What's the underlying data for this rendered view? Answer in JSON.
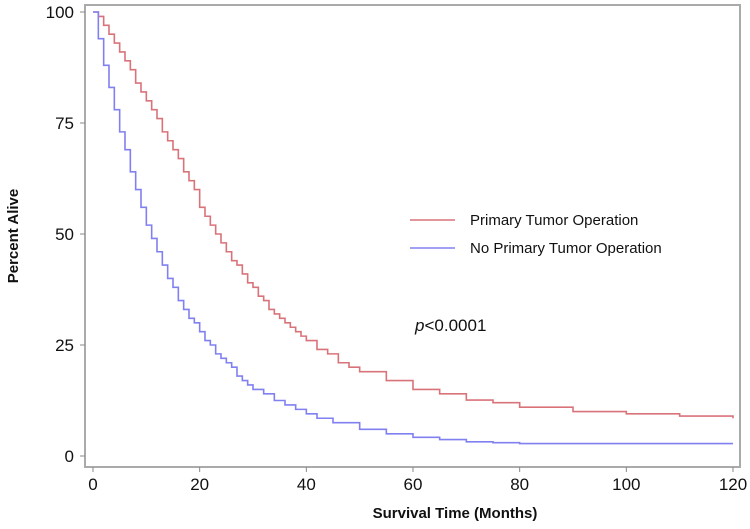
{
  "chart_data": {
    "type": "line",
    "title": "",
    "xlabel": "Survival Time (Months)",
    "ylabel": "Percent Alive",
    "xlim": [
      0,
      120
    ],
    "ylim": [
      0,
      100
    ],
    "xticks": [
      0,
      20,
      40,
      60,
      80,
      100,
      120
    ],
    "yticks": [
      0,
      25,
      50,
      75,
      100
    ],
    "grid": false,
    "legend_position": "center-right",
    "annotation": {
      "italic": "p",
      "text": "<0.0001"
    },
    "series": [
      {
        "name": "Primary Tumor Operation",
        "color": "#d9737a",
        "step": true,
        "x": [
          0,
          1,
          2,
          3,
          4,
          5,
          6,
          7,
          8,
          9,
          10,
          11,
          12,
          13,
          14,
          15,
          16,
          17,
          18,
          19,
          20,
          21,
          22,
          23,
          24,
          25,
          26,
          27,
          28,
          29,
          30,
          31,
          32,
          33,
          34,
          35,
          36,
          37,
          38,
          39,
          40,
          42,
          44,
          46,
          48,
          50,
          55,
          60,
          65,
          70,
          75,
          80,
          90,
          100,
          110,
          120
        ],
        "y": [
          100,
          99,
          97,
          95,
          93,
          91,
          89,
          87,
          84,
          82,
          80,
          78,
          76,
          73,
          71,
          69,
          67,
          64,
          62,
          60,
          56,
          54,
          52,
          50,
          48,
          46,
          44,
          43,
          41,
          39,
          38,
          36,
          35,
          33,
          32,
          31,
          30,
          29,
          28,
          27,
          26,
          24,
          23,
          21,
          20,
          19,
          17,
          15,
          14,
          12.6,
          12,
          11,
          10,
          9.5,
          9,
          8.5
        ]
      },
      {
        "name": "No Primary Tumor Operation",
        "color": "#8080f0",
        "step": true,
        "x": [
          0,
          1,
          2,
          3,
          4,
          5,
          6,
          7,
          8,
          9,
          10,
          11,
          12,
          13,
          14,
          15,
          16,
          17,
          18,
          19,
          20,
          21,
          22,
          23,
          24,
          25,
          26,
          27,
          28,
          29,
          30,
          32,
          34,
          36,
          38,
          40,
          42,
          45,
          50,
          55,
          60,
          65,
          70,
          75,
          80,
          120
        ],
        "y": [
          100,
          94,
          88,
          83,
          78,
          73,
          69,
          64,
          60,
          56,
          52,
          49,
          46,
          43,
          40,
          38,
          35,
          33,
          31,
          30,
          28,
          26,
          25,
          23,
          22,
          21,
          20,
          18,
          17,
          16,
          15,
          14,
          12.5,
          11.5,
          10.5,
          9.5,
          8.5,
          7.5,
          6,
          5,
          4.2,
          3.7,
          3.2,
          3,
          2.8,
          2.8
        ]
      }
    ]
  }
}
